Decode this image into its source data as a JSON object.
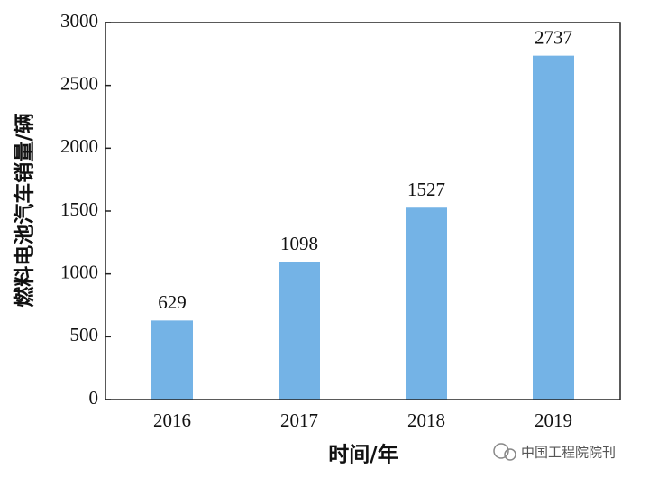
{
  "chart_data": {
    "type": "bar",
    "y_label": "燃料电池汽车销量/辆",
    "x_label": "时间/年",
    "watermark": "中国工程院院刊",
    "categories": [
      "2016",
      "2017",
      "2018",
      "2019"
    ],
    "values": [
      629,
      1098,
      1527,
      2737
    ],
    "color": "#74b3e6",
    "ylim": [
      0,
      3000
    ],
    "yticks": [
      0,
      500,
      1000,
      1500,
      2000,
      2500,
      3000
    ],
    "grid": false
  }
}
